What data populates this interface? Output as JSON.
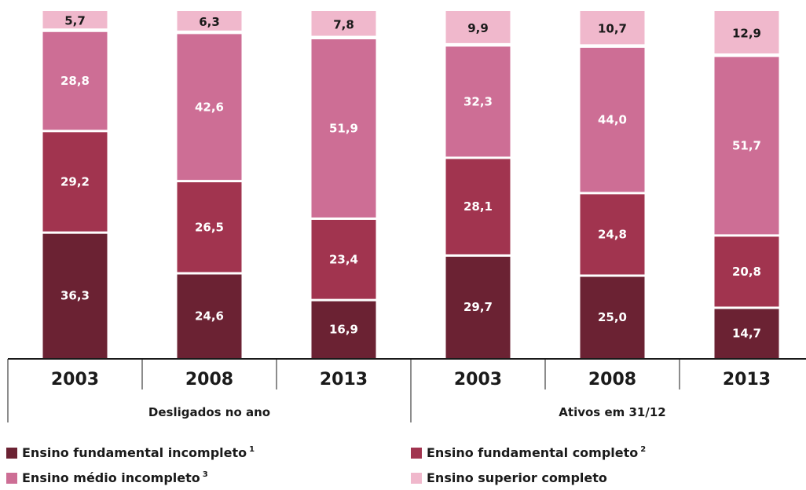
{
  "chart_data": {
    "type": "bar",
    "stacked": true,
    "normalized_percent": true,
    "groups": [
      {
        "label": "Desligados no ano",
        "categories": [
          "2003",
          "2008",
          "2013"
        ]
      },
      {
        "label": "Ativos em 31/12",
        "categories": [
          "2003",
          "2008",
          "2013"
        ]
      }
    ],
    "categories": [
      "2003",
      "2008",
      "2013",
      "2003",
      "2008",
      "2013"
    ],
    "series": [
      {
        "name": "Ensino fundamental incompleto",
        "sup": "1",
        "color": "#6b2233",
        "values": [
          36.3,
          24.6,
          16.9,
          29.7,
          25.0,
          14.7
        ],
        "labels": [
          "36,3",
          "24,6",
          "16,9",
          "29,7",
          "25,0",
          "14,7"
        ]
      },
      {
        "name": "Ensino fundamental completo",
        "sup": "2",
        "color": "#a1344f",
        "values": [
          29.2,
          26.5,
          23.4,
          28.1,
          24.8,
          20.8
        ],
        "labels": [
          "29,2",
          "26,5",
          "23,4",
          "28,1",
          "24,8",
          "20,8"
        ]
      },
      {
        "name": "Ensino médio incompleto",
        "sup": "3",
        "color": "#cd6e95",
        "values": [
          28.8,
          42.6,
          51.9,
          32.3,
          44.0,
          51.7
        ],
        "labels": [
          "28,8",
          "42,6",
          "51,9",
          "32,3",
          "44,0",
          "51,7"
        ]
      },
      {
        "name": "Ensino superior completo",
        "sup": "",
        "color": "#f0b8cc",
        "values": [
          5.7,
          6.3,
          7.8,
          9.9,
          10.7,
          12.9
        ],
        "labels": [
          "5,7",
          "6,3",
          "7,8",
          "9,9",
          "10,7",
          "12,9"
        ]
      }
    ],
    "title": "",
    "xlabel": "",
    "ylabel": "",
    "ylim": [
      0,
      100
    ],
    "grid": false,
    "legend_position": "bottom"
  }
}
